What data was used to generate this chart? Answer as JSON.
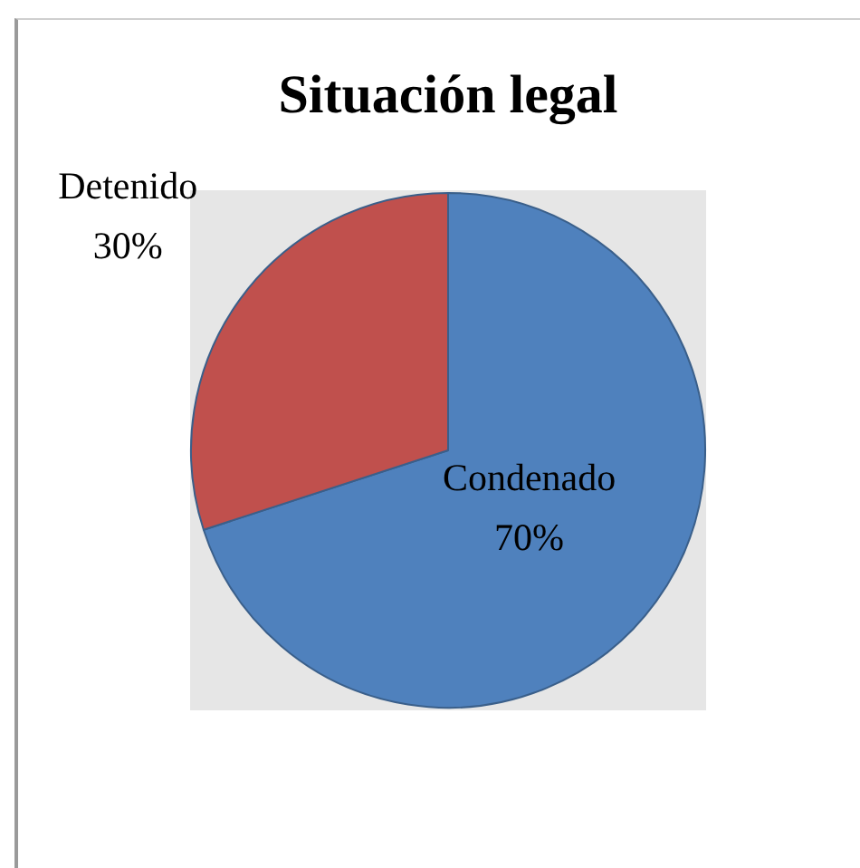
{
  "chart_data": {
    "type": "pie",
    "title": "Situación legal",
    "categories": [
      "Condenado",
      "Detenido"
    ],
    "values": [
      70,
      30
    ],
    "colors": [
      "#4f81bd",
      "#c0504d"
    ],
    "value_labels": [
      "70%",
      "30%"
    ],
    "legend": false
  }
}
